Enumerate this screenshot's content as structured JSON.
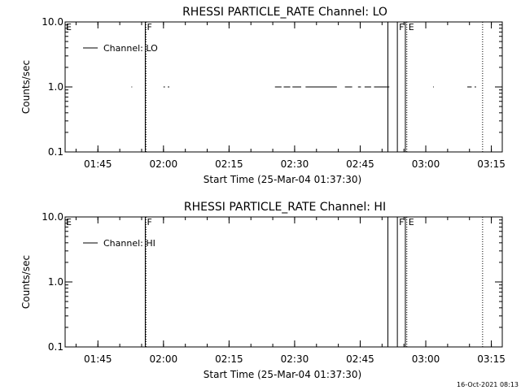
{
  "footer": {
    "timestamp": "16-Oct-2021 08:13"
  },
  "chart_data": [
    {
      "type": "line",
      "title": "RHESSI PARTICLE_RATE Channel: LO",
      "xlabel": "Start Time (25-Mar-04 01:37:30)",
      "ylabel": "Counts/sec",
      "y_scale": "log",
      "xlim": [
        "01:37:30",
        "03:17:30"
      ],
      "ylim": [
        0.1,
        10.0
      ],
      "x_ticks": [
        "01:45",
        "02:00",
        "02:15",
        "02:30",
        "02:45",
        "03:00",
        "03:15"
      ],
      "y_ticks": [
        "0.1",
        "1.0",
        "10.0"
      ],
      "legend": {
        "position": "top-left",
        "entries": [
          "Channel: LO"
        ]
      },
      "series": [
        {
          "name": "Channel: LO",
          "segments": [
            [
              "01:52:40",
              "01:52:50"
            ],
            [
              "02:00:00",
              "02:00:20"
            ],
            [
              "02:01:00",
              "02:01:20"
            ],
            [
              "02:25:30",
              "02:27:00"
            ],
            [
              "02:27:30",
              "02:29:00"
            ],
            [
              "02:29:30",
              "02:31:30"
            ],
            [
              "02:32:30",
              "02:39:40"
            ],
            [
              "02:41:30",
              "02:43:10"
            ],
            [
              "02:44:30",
              "02:45:10"
            ],
            [
              "02:46:00",
              "02:47:30"
            ],
            [
              "02:48:10",
              "02:51:40"
            ],
            [
              "03:01:40",
              "03:01:50"
            ],
            [
              "03:09:30",
              "03:10:30"
            ],
            [
              "03:11:10",
              "03:11:30"
            ]
          ],
          "y": 1.0
        }
      ],
      "markers": [
        {
          "time": "01:55:50",
          "style": "solid",
          "label": "F"
        },
        {
          "time": "01:56:00",
          "style": "dotted",
          "label": ""
        },
        {
          "time": "02:51:20",
          "style": "solid",
          "label": ""
        },
        {
          "time": "02:53:30",
          "style": "solid",
          "label": "F"
        },
        {
          "time": "02:55:20",
          "style": "solid",
          "label": ""
        },
        {
          "time": "02:55:40",
          "style": "dotted",
          "label": "E"
        },
        {
          "time": "03:13:00",
          "style": "dotted",
          "label": ""
        }
      ],
      "edge_label": "E"
    },
    {
      "type": "line",
      "title": "RHESSI PARTICLE_RATE Channel: HI",
      "xlabel": "Start Time (25-Mar-04 01:37:30)",
      "ylabel": "Counts/sec",
      "y_scale": "log",
      "xlim": [
        "01:37:30",
        "03:17:30"
      ],
      "ylim": [
        0.1,
        10.0
      ],
      "x_ticks": [
        "01:45",
        "02:00",
        "02:15",
        "02:30",
        "02:45",
        "03:00",
        "03:15"
      ],
      "y_ticks": [
        "0.1",
        "1.0",
        "10.0"
      ],
      "legend": {
        "position": "top-left",
        "entries": [
          "Channel: HI"
        ]
      },
      "series": [
        {
          "name": "Channel: HI",
          "segments": [],
          "y": 1.0
        }
      ],
      "markers": [
        {
          "time": "01:55:50",
          "style": "solid",
          "label": "F"
        },
        {
          "time": "01:56:00",
          "style": "dotted",
          "label": ""
        },
        {
          "time": "02:51:20",
          "style": "solid",
          "label": ""
        },
        {
          "time": "02:53:30",
          "style": "solid",
          "label": "F"
        },
        {
          "time": "02:55:20",
          "style": "solid",
          "label": ""
        },
        {
          "time": "02:55:40",
          "style": "dotted",
          "label": "E"
        },
        {
          "time": "03:13:00",
          "style": "dotted",
          "label": ""
        }
      ],
      "edge_label": "E"
    }
  ]
}
